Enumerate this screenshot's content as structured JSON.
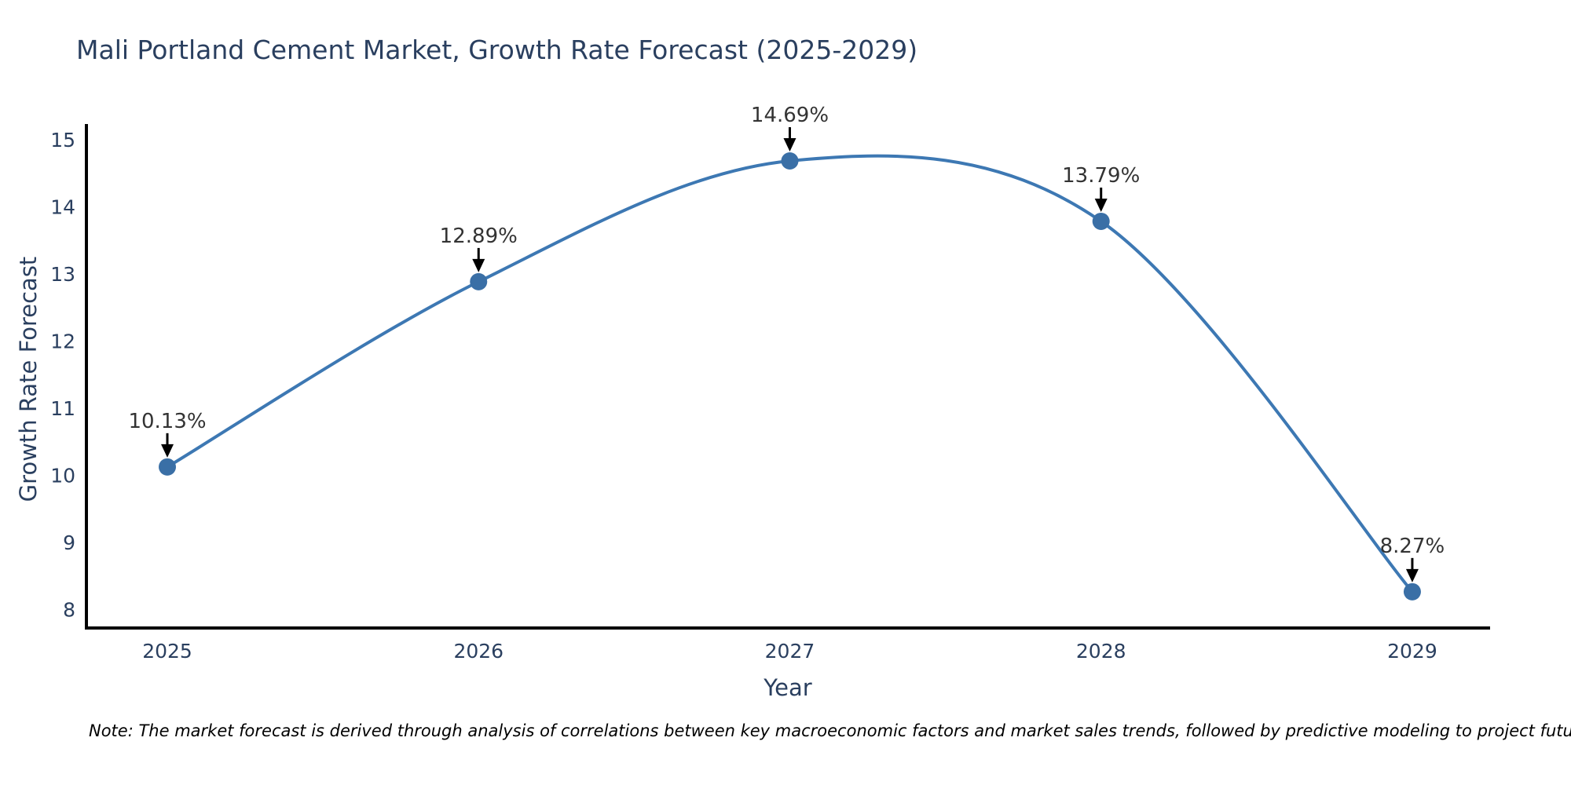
{
  "title": "Mali Portland Cement Market, Growth Rate Forecast (2025-2029)",
  "note": "Note: The market forecast is derived through analysis of correlations between key macroeconomic factors and market sales trends, followed by predictive modeling to project future sales",
  "chart_data": {
    "type": "line",
    "title": "Mali Portland Cement Market, Growth Rate Forecast (2025-2029)",
    "xlabel": "Year",
    "ylabel": "Growth Rate Forecast",
    "x": [
      2025,
      2026,
      2027,
      2028,
      2029
    ],
    "categories": [
      "2025",
      "2026",
      "2027",
      "2028",
      "2029"
    ],
    "series": [
      {
        "name": "Growth Rate Forecast",
        "values": [
          10.13,
          12.89,
          14.69,
          13.79,
          8.27
        ]
      }
    ],
    "point_labels": [
      "10.13%",
      "12.89%",
      "14.69%",
      "13.79%",
      "8.27%"
    ],
    "xticks": [
      2025,
      2026,
      2027,
      2028,
      2029
    ],
    "yticks": [
      8,
      9,
      10,
      11,
      12,
      13,
      14,
      15
    ],
    "xlim": [
      2024.74,
      2029.25
    ],
    "ylim": [
      7.73,
      15.24
    ],
    "grid": false,
    "legend": "none",
    "line_shape": "spline",
    "marker": "circle",
    "annotation_arrows": true,
    "colors": {
      "line": "#3d78b3",
      "marker": "#3a6fa6",
      "axis": "#000000",
      "title_text": "#2a3f5f",
      "tick_text": "#2a3f5f",
      "axis_title_text": "#2a3f5f",
      "annotation_text": "#333333",
      "arrow": "#000000",
      "background": "#ffffff"
    }
  }
}
